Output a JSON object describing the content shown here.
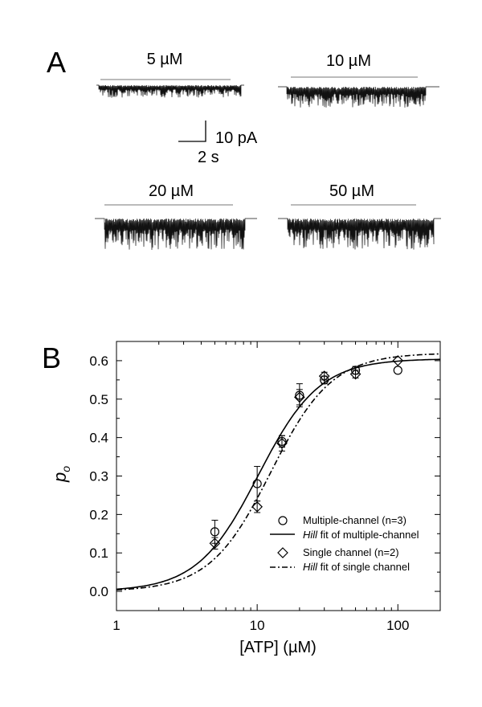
{
  "panel_a": {
    "label": "A",
    "traces": [
      {
        "concentration": "5 µM",
        "amplitude_pA": 6
      },
      {
        "concentration": "10 µM",
        "amplitude_pA": 10
      },
      {
        "concentration": "20 µM",
        "amplitude_pA": 15
      },
      {
        "concentration": "50 µM",
        "amplitude_pA": 15
      }
    ],
    "scale_bar": {
      "current_label": "10 pA",
      "time_label": "2 s"
    }
  },
  "panel_b": {
    "label": "B",
    "legend": [
      {
        "marker": "circle",
        "text": "Multiple-channel (n=3)"
      },
      {
        "line": "solid",
        "italic": "Hill",
        "text": " fit of multiple-channel"
      },
      {
        "marker": "diamond",
        "text": "Single channel (n=2)"
      },
      {
        "line": "dashdot",
        "italic": "Hill",
        "text": " fit of single channel"
      }
    ]
  },
  "chart_data": {
    "type": "scatter",
    "title": "",
    "xlabel": "[ATP] (µM)",
    "ylabel": "p",
    "ylabel_subscript": "o",
    "xscale": "log",
    "xlim": [
      1,
      200
    ],
    "ylim": [
      -0.05,
      0.65
    ],
    "x_ticks": [
      1,
      10,
      100
    ],
    "x_tick_labels": [
      "1",
      "10",
      "100"
    ],
    "y_ticks": [
      0.0,
      0.1,
      0.2,
      0.3,
      0.4,
      0.5,
      0.6
    ],
    "y_tick_labels": [
      "0.0",
      "0.1",
      "0.2",
      "0.3",
      "0.4",
      "0.5",
      "0.6"
    ],
    "legend_position": "bottom-right",
    "series": [
      {
        "name": "Multiple-channel (n=3)",
        "marker": "circle",
        "x": [
          5,
          10,
          15,
          20,
          30,
          50,
          100
        ],
        "y": [
          0.155,
          0.28,
          0.39,
          0.51,
          0.55,
          0.575,
          0.575
        ],
        "err": [
          0.03,
          0.045,
          0.015,
          0.03,
          0.01,
          0.01,
          0.0
        ]
      },
      {
        "name": "Single channel (n=2)",
        "marker": "diamond",
        "x": [
          5,
          10,
          15,
          20,
          30,
          50,
          100
        ],
        "y": [
          0.125,
          0.22,
          0.385,
          0.505,
          0.56,
          0.565,
          0.6
        ],
        "err": [
          0.015,
          0.015,
          0.02,
          0.02,
          0.01,
          0.01,
          0.0
        ]
      }
    ],
    "fits": [
      {
        "name": "Hill fit of multiple-channel",
        "style": "solid",
        "max": 0.605,
        "ec50": 10.2,
        "n": 2.0
      },
      {
        "name": "Hill fit of single channel",
        "style": "dashdot",
        "max": 0.62,
        "ec50": 12.5,
        "n": 2.0
      }
    ]
  }
}
